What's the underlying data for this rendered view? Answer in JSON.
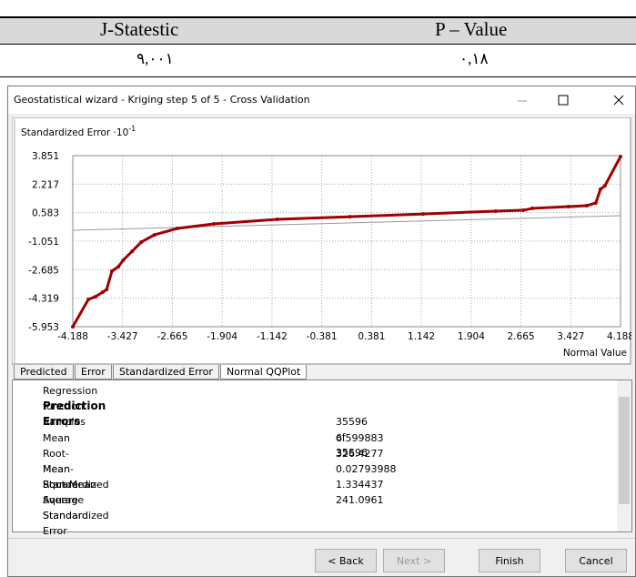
{
  "table": {
    "header": [
      "J-Statestic",
      "P – Value"
    ],
    "row": [
      "۹,۰۰۱",
      "۰,۱۸"
    ]
  },
  "dialog": {
    "title": "Geostatistical wizard - Kriging step 5 of 5 - Cross Validation",
    "plot": {
      "ylabel": "Standardized Error ·10",
      "ylabel_exp": "-1",
      "xlabel": "Normal Value",
      "xlim": [
        -4.188,
        4.188
      ],
      "ylim": [
        -5.953,
        3.851
      ],
      "xticks": [
        -4.188,
        -3.427,
        -2.665,
        -1.904,
        -1.142,
        -0.381,
        0.381,
        1.142,
        1.904,
        2.665,
        3.427,
        4.188
      ],
      "yticks": [
        3.851,
        2.217,
        0.583,
        -1.051,
        -2.685,
        -4.319,
        -5.953
      ],
      "color": "#a00000",
      "x": [
        -4.188,
        -3.95,
        -3.84,
        -3.73,
        -3.67,
        -3.59,
        -3.49,
        -3.42,
        -3.28,
        -3.14,
        -2.94,
        -2.59,
        -2.03,
        -1.06,
        0.05,
        1.17,
        2.28,
        2.7,
        2.84,
        3.39,
        3.67,
        3.81,
        3.88,
        3.95,
        4.188
      ],
      "y": [
        -5.953,
        -4.39,
        -4.23,
        -3.97,
        -3.82,
        -2.77,
        -2.51,
        -2.15,
        -1.63,
        -1.1,
        -0.69,
        -0.32,
        -0.06,
        0.2,
        0.35,
        0.51,
        0.67,
        0.72,
        0.83,
        0.93,
        0.98,
        1.14,
        1.92,
        2.13,
        3.8
      ]
    },
    "tabs": [
      "Predicted",
      "Error",
      "Standardized Error",
      "Normal QQPlot"
    ],
    "items": [
      {
        "label": "Regression function"
      },
      {
        "heading": "Prediction Errors"
      },
      {
        "label": "Samples",
        "value": "35596 of 35596"
      },
      {
        "label": "Mean",
        "value": "6.599883"
      },
      {
        "label": "Root-Mean-Square",
        "value": "326.4277"
      },
      {
        "label": "Mean Standardized",
        "value": "0.02793988"
      },
      {
        "label": "Root-Mean-Square Standardized",
        "value": "1.334437"
      },
      {
        "label": "Average Standard Error",
        "value": "241.0961"
      }
    ],
    "buttons": [
      "< Back",
      "Next >",
      "Finish",
      "Cancel"
    ]
  }
}
